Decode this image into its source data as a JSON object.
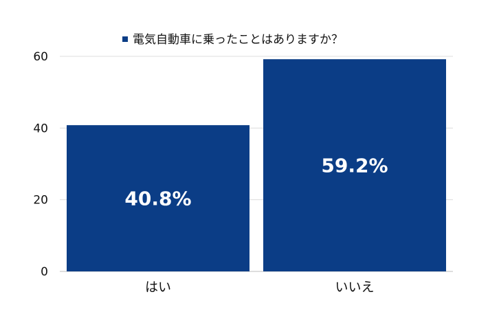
{
  "chart_data": {
    "type": "bar",
    "categories": [
      "はい",
      "いいえ"
    ],
    "series": [
      {
        "name": "電気自動車に乗ったことはありますか？",
        "values": [
          40.8,
          59.2
        ],
        "color": "#0b3d86"
      }
    ],
    "data_labels": [
      "40.8%",
      "59.2%"
    ],
    "ylim": [
      0,
      60
    ],
    "yticks": [
      0,
      20,
      40,
      60
    ],
    "grid": true,
    "legend_position": "top-center",
    "title": "",
    "xlabel": "",
    "ylabel": ""
  }
}
